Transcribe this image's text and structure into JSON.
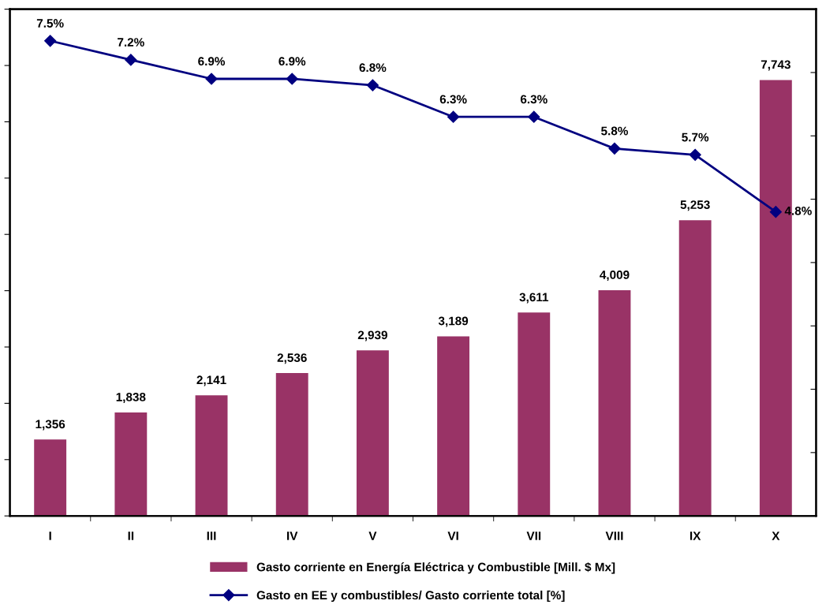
{
  "chart_data": {
    "type": "bar",
    "categories": [
      "I",
      "II",
      "III",
      "IV",
      "V",
      "VI",
      "VII",
      "VIII",
      "IX",
      "X"
    ],
    "series": [
      {
        "name": "Gasto corriente en Energía Eléctrica y Combustible [Mill. $ Mx]",
        "color": "#993366",
        "values": [
          1356,
          1838,
          2141,
          2536,
          2939,
          3189,
          3611,
          4009,
          5253,
          7743
        ],
        "value_labels": [
          "1,356",
          "1,838",
          "2,141",
          "2,536",
          "2,939",
          "3,189",
          "3,611",
          "4,009",
          "5,253",
          "7,743"
        ]
      },
      {
        "name": "Gasto en EE y combustibles/ Gasto corriente total [%]",
        "type": "line",
        "axis": "y2",
        "color": "#000080",
        "marker": "diamond",
        "values": [
          7.5,
          7.2,
          6.9,
          6.9,
          6.8,
          6.3,
          6.3,
          5.8,
          5.7,
          4.8
        ],
        "value_labels": [
          "7.5%",
          "7.2%",
          "6.9%",
          "6.9%",
          "6.8%",
          "6.3%",
          "6.3%",
          "5.8%",
          "5.7%",
          "4.8%"
        ]
      }
    ],
    "ylim": [
      0,
      9000
    ],
    "yticks": [
      {
        "value": 0,
        "label": null
      },
      {
        "value": 1000,
        "label": null
      },
      {
        "value": 2000,
        "label": null
      },
      {
        "value": 3000,
        "label": null
      },
      {
        "value": 4000,
        "label": null
      },
      {
        "value": 5000,
        "label": null
      },
      {
        "value": 6000,
        "label": null
      },
      {
        "value": 7000,
        "label": null
      },
      {
        "value": 8000,
        "label": null
      },
      {
        "value": 9000,
        "label": null
      }
    ],
    "y2lim": [
      0,
      8
    ],
    "y2ticks": [
      {
        "value": 0,
        "label": null
      },
      {
        "value": 1,
        "label": null
      },
      {
        "value": 2,
        "label": null
      },
      {
        "value": 3,
        "label": null
      },
      {
        "value": 4,
        "label": null
      },
      {
        "value": 5,
        "label": null
      },
      {
        "value": 6,
        "label": null
      },
      {
        "value": 7,
        "label": null
      },
      {
        "value": 8,
        "label": null
      }
    ],
    "tick_labels": "x",
    "grid": false,
    "legend": "bottom"
  }
}
